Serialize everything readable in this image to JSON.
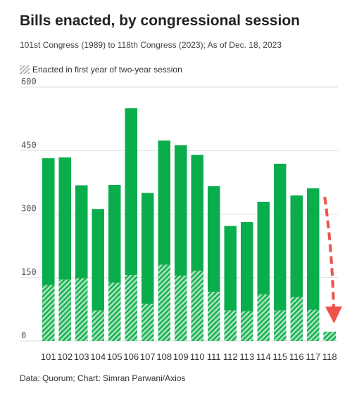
{
  "header": {
    "title": "Bills enacted, by congressional session",
    "subtitle": "101st Congress (1989) to 118th Congress (2023); As of Dec. 18, 2023"
  },
  "legend": {
    "label": "Enacted in first year of two-year session"
  },
  "footer": {
    "source": "Data: Quorum; Chart: Simran Parwani/Axios"
  },
  "colors": {
    "bar": "#0aad4c",
    "hatch_light": "#a6e2b8",
    "hatch_dark": "#0aad4c",
    "grid": "#dddddd",
    "arrow": "#f0524a"
  },
  "chart_data": {
    "type": "bar",
    "stacked": true,
    "categories": [
      "101",
      "102",
      "103",
      "104",
      "105",
      "106",
      "107",
      "108",
      "109",
      "110",
      "111",
      "112",
      "113",
      "114",
      "115",
      "116",
      "117",
      "118"
    ],
    "series": [
      {
        "name": "Enacted in first year of two-year session",
        "pattern": "hatched",
        "values": [
          132,
          145,
          148,
          72,
          138,
          156,
          88,
          180,
          154,
          166,
          116,
          72,
          70,
          110,
          72,
          104,
          74,
          22
        ]
      },
      {
        "pattern": "solid",
        "values": [
          300,
          289,
          220,
          240,
          231,
          394,
          262,
          294,
          309,
          274,
          250,
          200,
          211,
          219,
          347,
          240,
          287,
          0
        ]
      }
    ],
    "yticks": [
      0,
      150,
      300,
      450,
      600
    ],
    "ylim": [
      0,
      600
    ],
    "grid": true,
    "annotation": "dashed red arrow pointing down at 118"
  }
}
